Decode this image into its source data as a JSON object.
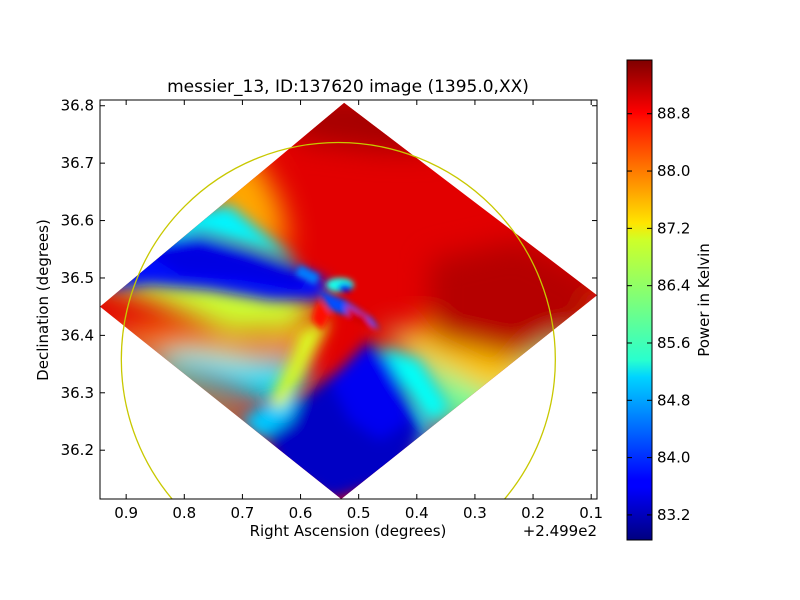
{
  "chart_data": {
    "type": "heatmap",
    "title": "messier_13, ID:137620 image (1395.0,XX)",
    "xlabel": "Right Ascension (degrees)",
    "ylabel": "Declination (degrees)",
    "x_offset_label": "+2.499e2",
    "x_ticks": [
      "0.9",
      "0.8",
      "0.7",
      "0.6",
      "0.5",
      "0.4",
      "0.3",
      "0.2",
      "0.1"
    ],
    "x_tick_values": [
      0.9,
      0.8,
      0.7,
      0.6,
      0.5,
      0.4,
      0.3,
      0.2,
      0.1
    ],
    "xlim": [
      0.945,
      0.09
    ],
    "y_ticks": [
      "36.8",
      "36.7",
      "36.6",
      "36.5",
      "36.4",
      "36.3",
      "36.2"
    ],
    "y_tick_values": [
      36.8,
      36.7,
      36.6,
      36.5,
      36.4,
      36.3,
      36.2
    ],
    "ylim": [
      36.115,
      36.81
    ],
    "colorbar": {
      "label": "Power in Kelvin",
      "ticks": [
        "83.2",
        "84.0",
        "84.8",
        "85.6",
        "86.4",
        "87.2",
        "88.0",
        "88.8"
      ],
      "tick_values": [
        83.2,
        84.0,
        84.8,
        85.6,
        86.4,
        87.2,
        88.0,
        88.8
      ],
      "range": [
        82.85,
        89.55
      ]
    },
    "overlay_circle": {
      "center_ra": 0.535,
      "center_dec": 36.358,
      "radius_dec": 0.378,
      "color": "#c8c800"
    },
    "footprint_corners": {
      "top": [
        0.525,
        36.805
      ],
      "right": [
        0.09,
        36.47
      ],
      "bottom": [
        0.53,
        36.115
      ],
      "left": [
        0.945,
        36.45
      ]
    },
    "region_approx_kelvin": {
      "upper_right": 88.9,
      "top_corner": 89.3,
      "left_band_blue": 83.8,
      "lower_center_blue": 83.3,
      "left_edge": 86.7,
      "lower_right": 86.0
    }
  }
}
